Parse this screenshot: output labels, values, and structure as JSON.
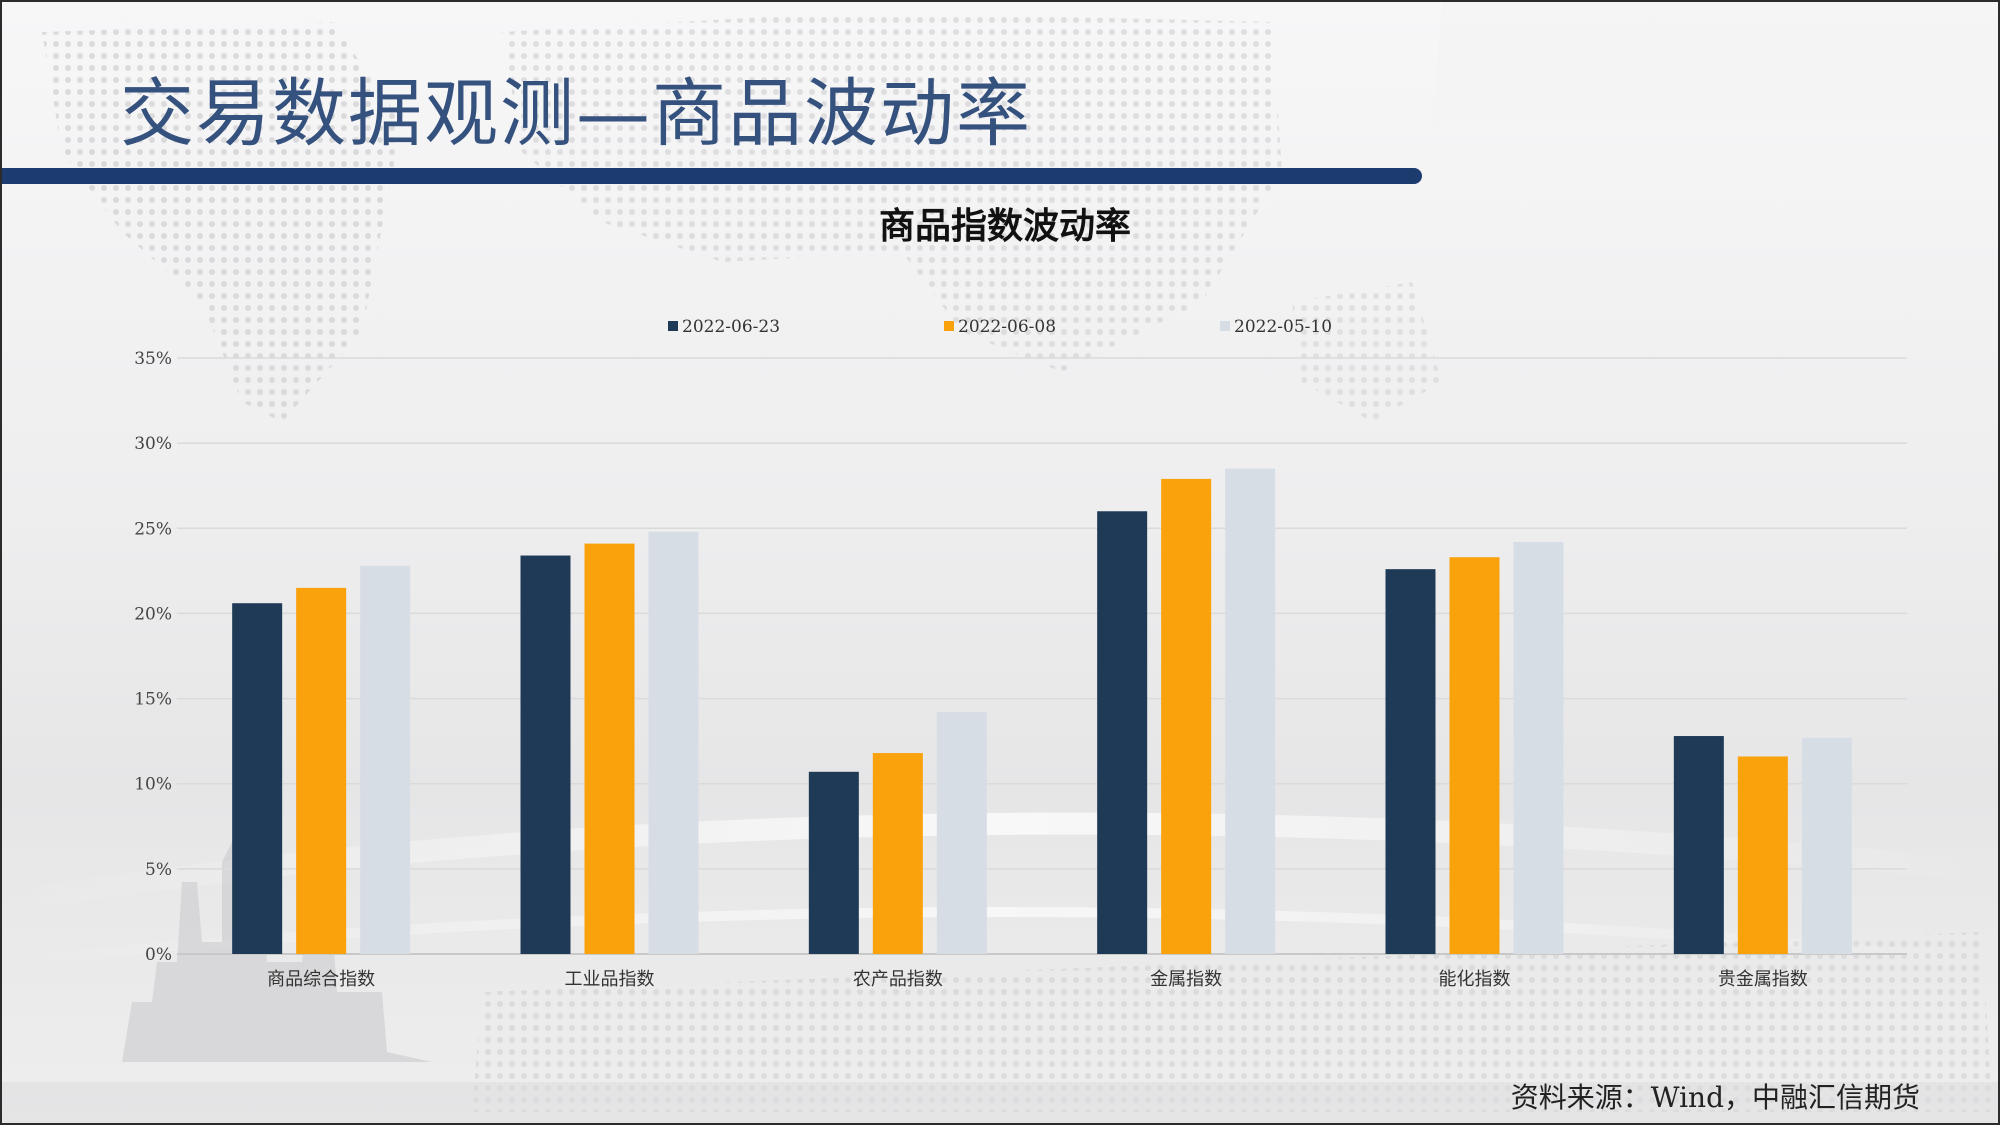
{
  "slide": {
    "title": "交易数据观测—商品波动率",
    "source": "资料来源：Wind，中融汇信期货"
  },
  "chart_data": {
    "type": "bar",
    "title": "商品指数波动率",
    "categories": [
      "商品综合指数",
      "工业品指数",
      "农产品指数",
      "金属指数",
      "能化指数",
      "贵金属指数"
    ],
    "series": [
      {
        "name": "2022-06-23",
        "color": "#1f3a56",
        "values": [
          20.6,
          23.4,
          10.7,
          26.0,
          22.6,
          12.8
        ]
      },
      {
        "name": "2022-06-08",
        "color": "#f9a20b",
        "values": [
          21.5,
          24.1,
          11.8,
          27.9,
          23.3,
          11.6
        ]
      },
      {
        "name": "2022-05-10",
        "color": "#d7dde5",
        "values": [
          22.8,
          24.8,
          14.2,
          28.5,
          24.2,
          12.7
        ]
      }
    ],
    "yticks": [
      "0%",
      "5%",
      "10%",
      "15%",
      "20%",
      "25%",
      "30%",
      "35%"
    ],
    "ylim": [
      0,
      35
    ],
    "grid": true,
    "legend_position": "top"
  }
}
